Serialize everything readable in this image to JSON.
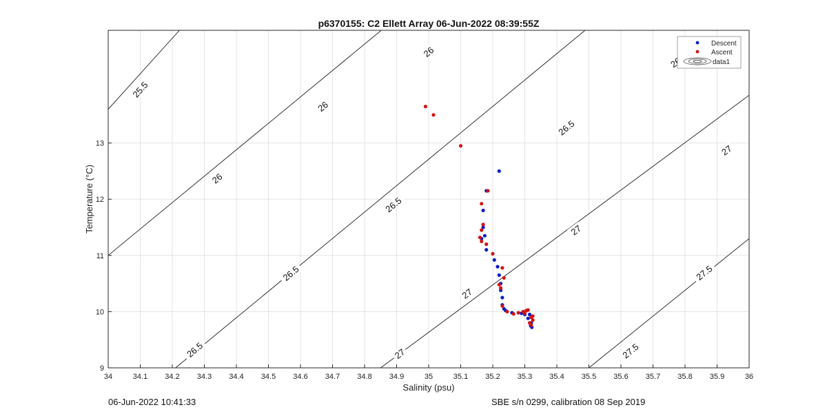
{
  "chart_data": {
    "type": "scatter",
    "title": "p6370155: C2 Ellett Array 06-Jun-2022 08:39:55Z",
    "xlabel": "Salinity (psu)",
    "ylabel": "Temperature (°C)",
    "xlim": [
      34,
      36
    ],
    "ylim": [
      9,
      14.0
    ],
    "x_ticks": [
      34,
      34.1,
      34.2,
      34.3,
      34.4,
      34.5,
      34.6,
      34.7,
      34.8,
      34.9,
      35,
      35.1,
      35.2,
      35.3,
      35.4,
      35.5,
      35.6,
      35.7,
      35.8,
      35.9,
      36
    ],
    "y_ticks": [
      9,
      10,
      11,
      12,
      13
    ],
    "grid": true,
    "legend_position": "top-right",
    "legend": [
      {
        "label": "Descent",
        "color": "#0a1fc4",
        "marker": "dot"
      },
      {
        "label": "Ascent",
        "color": "#d21313",
        "marker": "dot"
      },
      {
        "label": "data1",
        "marker": "contour"
      }
    ],
    "contours": [
      {
        "label": "25.5",
        "points": [
          [
            34.0,
            13.6
          ],
          [
            34.38,
            16.0
          ]
        ]
      },
      {
        "label": "26",
        "points": [
          [
            34.0,
            11.0
          ],
          [
            35.0,
            15.7
          ]
        ]
      },
      {
        "label": "26.5",
        "points": [
          [
            34.21,
            9.0
          ],
          [
            35.7,
            16.0
          ]
        ]
      },
      {
        "label": "27",
        "points": [
          [
            34.85,
            9.0
          ],
          [
            36.0,
            13.85
          ]
        ]
      },
      {
        "label": "27.5",
        "points": [
          [
            35.5,
            9.0
          ],
          [
            36.0,
            11.3
          ]
        ]
      }
    ],
    "contour_labels": [
      {
        "text": "25.5",
        "x": 34.1,
        "y": 13.95
      },
      {
        "text": "26",
        "x": 35.0,
        "y": 14.62
      },
      {
        "text": "26",
        "x": 34.67,
        "y": 13.65
      },
      {
        "text": "26",
        "x": 34.34,
        "y": 12.37
      },
      {
        "text": "26.5",
        "x": 35.78,
        "y": 14.47
      },
      {
        "text": "26.5",
        "x": 35.43,
        "y": 13.27
      },
      {
        "text": "26.5",
        "x": 34.89,
        "y": 11.9
      },
      {
        "text": "26.5",
        "x": 34.57,
        "y": 10.68
      },
      {
        "text": "26.5",
        "x": 34.27,
        "y": 9.32
      },
      {
        "text": "27",
        "x": 35.93,
        "y": 12.87
      },
      {
        "text": "27",
        "x": 35.46,
        "y": 11.45
      },
      {
        "text": "27",
        "x": 35.12,
        "y": 10.32
      },
      {
        "text": "27",
        "x": 34.91,
        "y": 9.25
      },
      {
        "text": "27.5",
        "x": 35.86,
        "y": 10.69
      },
      {
        "text": "27.5",
        "x": 35.63,
        "y": 9.3
      }
    ],
    "series": [
      {
        "name": "Descent",
        "color": "#0a1fc4",
        "points": [
          [
            35.22,
            12.5
          ],
          [
            35.18,
            12.15
          ],
          [
            35.17,
            11.8
          ],
          [
            35.17,
            11.5
          ],
          [
            35.175,
            11.35
          ],
          [
            35.165,
            11.3
          ],
          [
            35.18,
            11.1
          ],
          [
            35.205,
            10.92
          ],
          [
            35.215,
            10.8
          ],
          [
            35.22,
            10.65
          ],
          [
            35.225,
            10.5
          ],
          [
            35.225,
            10.38
          ],
          [
            35.23,
            10.25
          ],
          [
            35.23,
            10.12
          ],
          [
            35.235,
            10.05
          ],
          [
            35.24,
            10.02
          ],
          [
            35.26,
            9.98
          ],
          [
            35.29,
            9.97
          ],
          [
            35.3,
            9.95
          ],
          [
            35.31,
            9.88
          ],
          [
            35.315,
            9.95
          ],
          [
            35.32,
            9.8
          ],
          [
            35.318,
            9.75
          ],
          [
            35.322,
            9.72
          ]
        ]
      },
      {
        "name": "Ascent",
        "color": "#d21313",
        "points": [
          [
            34.99,
            13.65
          ],
          [
            35.015,
            13.5
          ],
          [
            35.1,
            12.95
          ],
          [
            35.185,
            12.15
          ],
          [
            35.165,
            11.92
          ],
          [
            35.17,
            11.55
          ],
          [
            35.165,
            11.45
          ],
          [
            35.16,
            11.32
          ],
          [
            35.165,
            11.25
          ],
          [
            35.18,
            11.2
          ],
          [
            35.2,
            11.03
          ],
          [
            35.23,
            10.78
          ],
          [
            35.235,
            10.6
          ],
          [
            35.22,
            10.48
          ],
          [
            35.225,
            10.42
          ],
          [
            35.23,
            10.1
          ],
          [
            35.245,
            10.0
          ],
          [
            35.265,
            9.96
          ],
          [
            35.28,
            9.98
          ],
          [
            35.295,
            10.0
          ],
          [
            35.305,
            10.02
          ],
          [
            35.31,
            10.03
          ],
          [
            35.3,
            9.97
          ],
          [
            35.32,
            9.9
          ],
          [
            35.325,
            9.92
          ],
          [
            35.325,
            9.85
          ],
          [
            35.315,
            9.8
          ],
          [
            35.32,
            9.76
          ]
        ]
      }
    ]
  },
  "footer": {
    "left": "06-Jun-2022 10:41:33",
    "right": "SBE s/n 0299, calibration 08 Sep 2019"
  }
}
